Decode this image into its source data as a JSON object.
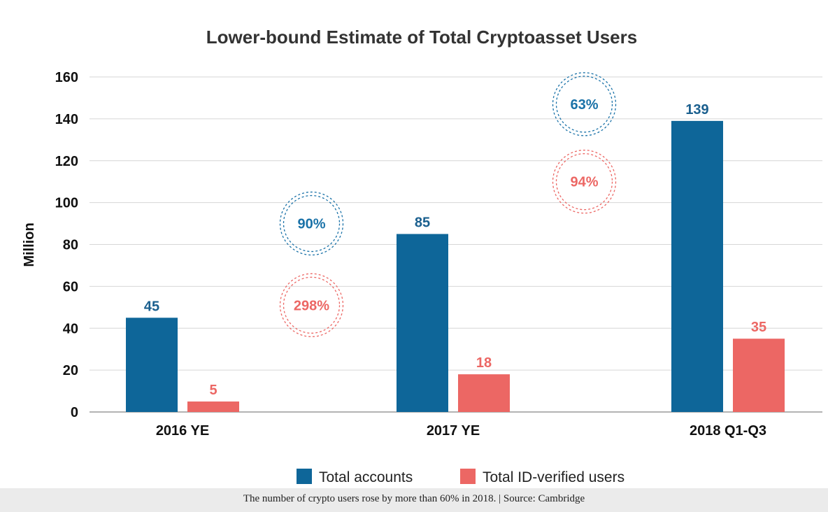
{
  "chart_data": {
    "type": "bar",
    "title": "Lower-bound Estimate of Total Cryptoasset Users",
    "ylabel": "Million",
    "xlabel": "",
    "ylim": [
      0,
      160
    ],
    "yticks": [
      0,
      20,
      40,
      60,
      80,
      100,
      120,
      140,
      160
    ],
    "grid": true,
    "legend_position": "bottom",
    "categories": [
      "2016 YE",
      "2017 YE",
      "2018 Q1-Q3"
    ],
    "series": [
      {
        "name": "Total accounts",
        "values": [
          45,
          85,
          139
        ],
        "labels": [
          "45",
          "85",
          "139"
        ],
        "color": "#0e6699"
      },
      {
        "name": "Total ID-verified users",
        "values": [
          5,
          18,
          35
        ],
        "labels": [
          "5",
          "18",
          "35"
        ],
        "color": "#ec6764"
      }
    ],
    "annotations": [
      {
        "text": "90%",
        "between": [
          "2016 YE",
          "2017 YE"
        ],
        "series": "Total accounts",
        "color": "#1a72a8",
        "y": 90
      },
      {
        "text": "298%",
        "between": [
          "2016 YE",
          "2017 YE"
        ],
        "series": "Total ID-verified users",
        "color": "#ec6764",
        "y": 51
      },
      {
        "text": "63%",
        "between": [
          "2017 YE",
          "2018 Q1-Q3"
        ],
        "series": "Total accounts",
        "color": "#1a72a8",
        "y": 147
      },
      {
        "text": "94%",
        "between": [
          "2017 YE",
          "2018 Q1-Q3"
        ],
        "series": "Total ID-verified users",
        "color": "#ec6764",
        "y": 110
      }
    ]
  },
  "caption": "The number of crypto users rose by more than 60% in 2018. | Source: Cambridge"
}
